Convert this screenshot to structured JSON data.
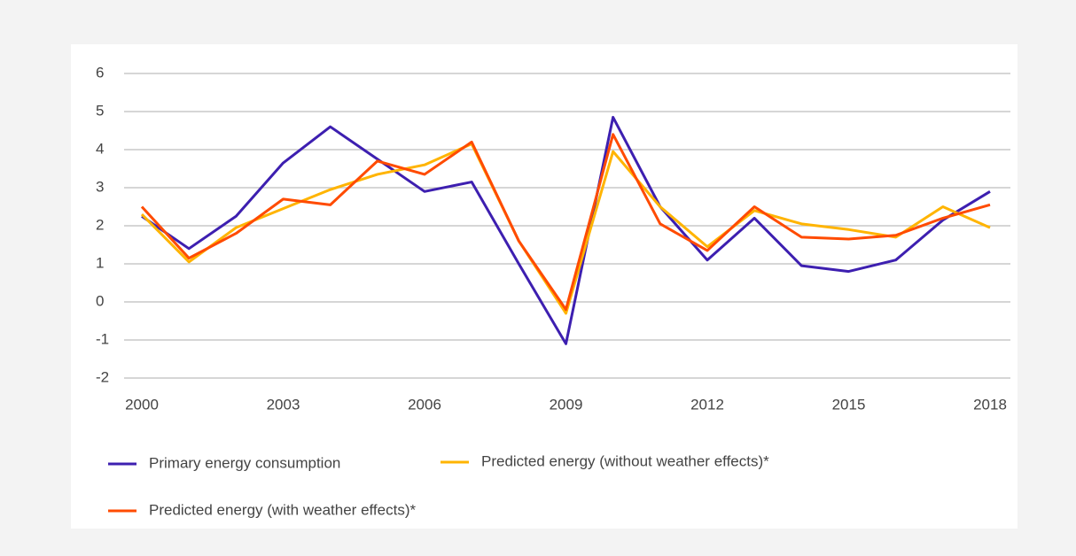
{
  "chart_data": {
    "type": "line",
    "x": [
      2000,
      2001,
      2002,
      2003,
      2004,
      2005,
      2006,
      2007,
      2008,
      2009,
      2010,
      2011,
      2012,
      2013,
      2014,
      2015,
      2016,
      2017,
      2018
    ],
    "series": [
      {
        "name": "Primary energy consumption",
        "color": "#3d1fb0",
        "values": [
          2.25,
          1.4,
          2.25,
          3.65,
          4.6,
          3.75,
          2.9,
          3.15,
          1.0,
          -1.1,
          4.85,
          2.5,
          1.1,
          2.2,
          0.95,
          0.8,
          1.1,
          2.15,
          2.9
        ]
      },
      {
        "name": "Predicted energy (without weather effects)*",
        "color": "#ffb400",
        "values": [
          2.3,
          1.05,
          1.95,
          2.45,
          2.95,
          3.35,
          3.6,
          4.15,
          1.6,
          -0.3,
          3.95,
          2.5,
          1.45,
          2.4,
          2.05,
          1.9,
          1.7,
          2.5,
          1.95
        ]
      },
      {
        "name": "Predicted energy (with weather effects)*",
        "color": "#ff4b00",
        "values": [
          2.5,
          1.15,
          1.8,
          2.7,
          2.55,
          3.7,
          3.35,
          4.2,
          1.6,
          -0.2,
          4.4,
          2.05,
          1.35,
          2.5,
          1.7,
          1.65,
          1.75,
          2.2,
          2.55
        ]
      }
    ],
    "xlim": [
      2000,
      2018
    ],
    "xticks": [
      2000,
      2003,
      2006,
      2009,
      2012,
      2015,
      2018
    ],
    "ylim": [
      -2,
      6
    ],
    "yticks": [
      -2,
      -1,
      0,
      1,
      2,
      3,
      4,
      5,
      6
    ],
    "grid": true
  }
}
